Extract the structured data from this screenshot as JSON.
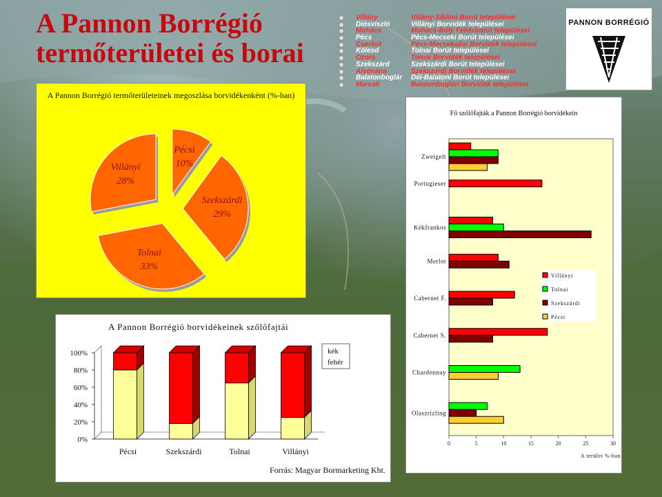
{
  "title": {
    "line1": "A Pannon Borrégió",
    "line2": "termőterületei és borai"
  },
  "logo": {
    "text": "PANNON BORRÉGIÓ"
  },
  "region_list": [
    {
      "name": "Villány",
      "desc": "Villány-Siklósi Borút települései"
    },
    {
      "name": "Diósviszló",
      "desc": "Villányi Borvidék települései"
    },
    {
      "name": "Mohács",
      "desc": "Mohács-Bóly Fehérborút települései"
    },
    {
      "name": "Pécs",
      "desc": "Pécs-Mecseki Borút települései"
    },
    {
      "name": "Cserkút",
      "desc": "Pécs-Mecsekaljai Borvidék települései"
    },
    {
      "name": "Kölesd",
      "desc": "Tolnai Borút települései"
    },
    {
      "name": "Ozora",
      "desc": "Tolnai Borvidék települései"
    },
    {
      "name": "Szekszárd",
      "desc": "Szekszárdi Borút települései"
    },
    {
      "name": "Alsónána",
      "desc": "Szekszárdi Borvidék települései"
    },
    {
      "name": "Balatonboglár",
      "desc": "Dél-Balatoni Borút települései"
    },
    {
      "name": "Marcali",
      "desc": "Balatonboglári Borvidék települései"
    }
  ],
  "chart_data": [
    {
      "type": "pie",
      "title": "A Pannon Borrégió termőterületeinek megoszlása borvidékenként (%-ban)",
      "categories": [
        "Pécsi",
        "Szekszárdi",
        "Tolnai",
        "Villányi"
      ],
      "values": [
        10,
        29,
        33,
        28
      ],
      "labels": [
        "10%",
        "29%",
        "33%",
        "28%"
      ],
      "color": "#ff6600"
    },
    {
      "type": "bar",
      "orientation": "horizontal",
      "title": "Fő szőlőfajták a Pannon Borrégió borvidékein",
      "xlabel": "A terület %-ban",
      "xlim": [
        0,
        30
      ],
      "xticks": [
        "0",
        "5",
        "10",
        "15",
        "20",
        "25",
        "30"
      ],
      "categories": [
        "Zweigelt",
        "Portugieser",
        "Kékfrankos",
        "Merlot",
        "Cabernet F.",
        "Cabernet S.",
        "Chardonnay",
        "Olaszrizling"
      ],
      "series": [
        {
          "name": "Villányi",
          "color": "#ff0000",
          "values": [
            4,
            17,
            8,
            9,
            12,
            18,
            null,
            null
          ]
        },
        {
          "name": "Tolnai",
          "color": "#00ff00",
          "values": [
            9,
            null,
            10,
            null,
            null,
            null,
            13,
            7
          ]
        },
        {
          "name": "Szekszárdi",
          "color": "#800000",
          "values": [
            9,
            null,
            26,
            11,
            8,
            8,
            null,
            5
          ]
        },
        {
          "name": "Pécsi",
          "color": "#ffcc33",
          "values": [
            7,
            null,
            null,
            null,
            null,
            null,
            9,
            10
          ]
        }
      ],
      "legend": "right"
    },
    {
      "type": "bar",
      "stacked": true,
      "title": "A Pannon Borrégió borvidékeinek szőlőfajtái",
      "categories": [
        "Pécsi",
        "Szekszárdi",
        "Tolnai",
        "Villányi"
      ],
      "yticks": [
        "0%",
        "20%",
        "40%",
        "60%",
        "80%",
        "100%"
      ],
      "ylim": [
        0,
        100
      ],
      "series": [
        {
          "name": "fehér",
          "color": "#ffff99",
          "values": [
            80,
            18,
            65,
            25
          ]
        },
        {
          "name": "kék",
          "color": "#ff0000",
          "values": [
            20,
            82,
            35,
            75
          ]
        }
      ],
      "legend": "right"
    }
  ],
  "source": "Forrás: Magyar Bormarketing Kht."
}
